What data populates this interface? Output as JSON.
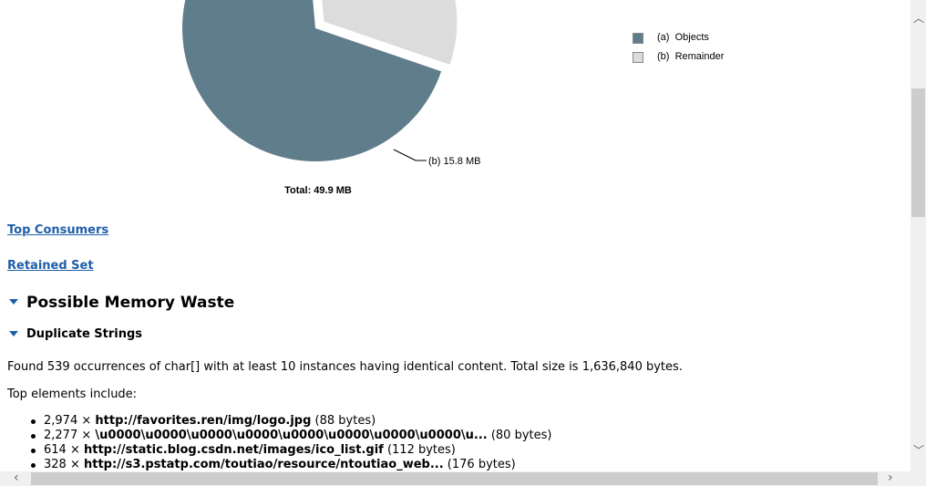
{
  "chart_data": {
    "type": "pie",
    "title": "",
    "total_label": "Total: 49.9 MB",
    "slices": [
      {
        "key": "a",
        "label": "Objects",
        "value": 34.1,
        "color": "#607d8b"
      },
      {
        "key": "b",
        "label": "Remainder",
        "value": 15.8,
        "color": "#dcdcdc"
      }
    ],
    "slice_labels": [
      {
        "text": "(b)  15.8 MB"
      }
    ],
    "legend": [
      {
        "marker": "(a)",
        "label": "Objects",
        "color": "#607d8b"
      },
      {
        "marker": "(b)",
        "label": "Remainder",
        "color": "#dcdcdc"
      }
    ],
    "legend_position": "top-right"
  },
  "links": {
    "top_consumers": "Top Consumers",
    "retained_set": "Retained Set"
  },
  "sections": {
    "memory_waste": "Possible Memory Waste",
    "duplicate_strings": "Duplicate Strings"
  },
  "summary_text": "Found 539 occurrences of char[] with at least 10 instances having identical content. Total size is 1,636,840 bytes.",
  "top_elements_label": "Top elements include:",
  "top_elements": [
    {
      "count": "2,974 ×",
      "value": "http://favorites.ren/img/logo.jpg",
      "size": "(88 bytes)"
    },
    {
      "count": "2,277 ×",
      "value": "\\u0000\\u0000\\u0000\\u0000\\u0000\\u0000\\u0000\\u0000\\u...",
      "size": "(80 bytes)"
    },
    {
      "count": "614 ×",
      "value": "http://static.blog.csdn.net/images/ico_list.gif",
      "size": "(112 bytes)"
    },
    {
      "count": "328 ×",
      "value": "http://s3.pstatp.com/toutiao/resource/ntoutiao_web...",
      "size": "(176 bytes)"
    }
  ],
  "colors": {
    "link": "#1f5ea8",
    "pie_objects": "#607d8b",
    "pie_remainder": "#dcdcdc",
    "scrollbar_track": "#f0f0f0",
    "scrollbar_thumb": "#cdcdcd"
  },
  "icons": {
    "collapse": "triangle-down-icon",
    "scroll_up": "chevron-up-icon",
    "scroll_down": "chevron-down-icon",
    "scroll_left": "chevron-left-icon",
    "scroll_right": "chevron-right-icon"
  }
}
